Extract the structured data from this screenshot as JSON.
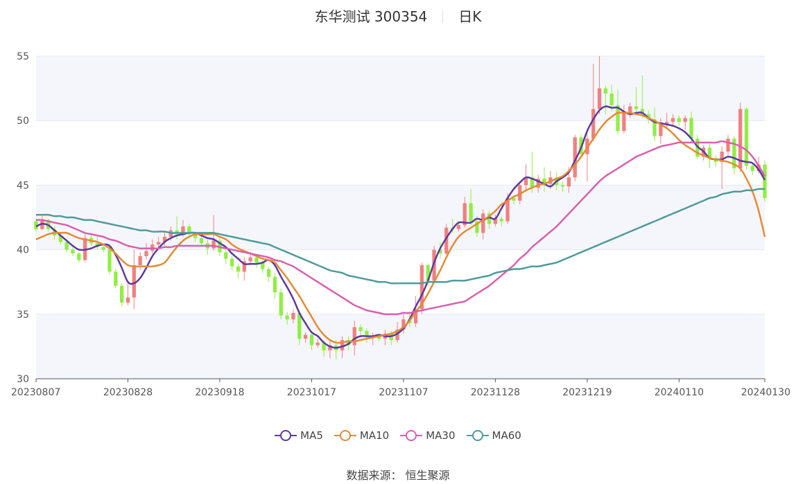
{
  "chart_title": {
    "name": "东华测试 300354",
    "period": "日K"
  },
  "source_text": "数据来源： 恒生聚源",
  "colors": {
    "up": "#f08080",
    "down": "#90ee44",
    "band": "#f5f6fb",
    "grid": "#e6e8f0",
    "axis": "#555555"
  },
  "chart_data": {
    "type": "candlestick",
    "ylim": [
      30,
      55
    ],
    "yticks": [
      30,
      35,
      40,
      45,
      50,
      55
    ],
    "x_tick_labels": [
      "20230807",
      "20230828",
      "20230918",
      "20231017",
      "20231107",
      "20231128",
      "20231219",
      "20240110",
      "20240130"
    ],
    "x_tick_indices": [
      0,
      15,
      30,
      45,
      60,
      75,
      90,
      105,
      119
    ],
    "candles": [
      [
        42.2,
        41.6,
        42.4,
        41.4
      ],
      [
        41.6,
        42.3,
        42.6,
        41.5
      ],
      [
        42.3,
        41.6,
        42.4,
        41.4
      ],
      [
        41.6,
        41.1,
        41.8,
        40.8
      ],
      [
        41.1,
        40.6,
        41.3,
        40.4
      ],
      [
        40.6,
        40.0,
        40.8,
        39.8
      ],
      [
        40.0,
        39.7,
        40.2,
        39.5
      ],
      [
        39.7,
        39.2,
        39.9,
        39.0
      ],
      [
        39.2,
        40.9,
        41.2,
        39.0
      ],
      [
        40.9,
        40.5,
        41.2,
        40.3
      ],
      [
        40.5,
        40.2,
        41.0,
        40.0
      ],
      [
        40.2,
        40.0,
        40.4,
        39.8
      ],
      [
        40.0,
        38.3,
        40.2,
        38.1
      ],
      [
        38.3,
        37.2,
        38.5,
        37.0
      ],
      [
        37.2,
        35.9,
        37.4,
        35.6
      ],
      [
        35.9,
        36.3,
        37.6,
        35.7
      ],
      [
        36.3,
        38.8,
        40.0,
        35.4
      ],
      [
        38.8,
        39.5,
        39.8,
        38.4
      ],
      [
        39.5,
        39.9,
        40.5,
        39.2
      ],
      [
        39.9,
        40.4,
        40.8,
        39.7
      ],
      [
        40.4,
        40.6,
        41.0,
        40.1
      ],
      [
        40.6,
        41.0,
        41.4,
        40.3
      ],
      [
        41.0,
        41.5,
        41.8,
        40.7
      ],
      [
        41.5,
        41.2,
        42.6,
        40.8
      ],
      [
        41.2,
        41.8,
        42.3,
        41.0
      ],
      [
        41.8,
        41.2,
        42.0,
        40.9
      ],
      [
        41.2,
        40.9,
        41.4,
        40.6
      ],
      [
        40.9,
        40.5,
        41.2,
        40.2
      ],
      [
        40.5,
        40.1,
        40.8,
        39.6
      ],
      [
        40.1,
        40.7,
        42.7,
        39.9
      ],
      [
        40.7,
        39.8,
        41.0,
        39.5
      ],
      [
        39.8,
        39.3,
        40.0,
        38.9
      ],
      [
        39.3,
        38.7,
        39.5,
        38.4
      ],
      [
        38.7,
        38.3,
        38.9,
        37.8
      ],
      [
        38.3,
        39.1,
        39.4,
        37.6
      ],
      [
        39.1,
        39.4,
        39.8,
        38.8
      ],
      [
        39.4,
        39.0,
        39.6,
        38.6
      ],
      [
        39.0,
        38.5,
        39.2,
        38.2
      ],
      [
        38.5,
        37.9,
        38.7,
        37.5
      ],
      [
        37.9,
        36.7,
        38.2,
        36.2
      ],
      [
        36.7,
        34.9,
        37.0,
        34.6
      ],
      [
        34.9,
        34.6,
        35.2,
        34.2
      ],
      [
        34.6,
        35.1,
        35.4,
        34.3
      ],
      [
        35.1,
        33.1,
        35.3,
        32.6
      ],
      [
        33.1,
        33.4,
        33.6,
        32.8
      ],
      [
        33.4,
        32.6,
        33.6,
        32.2
      ],
      [
        32.6,
        32.8,
        33.1,
        32.4
      ],
      [
        32.8,
        32.2,
        33.0,
        31.7
      ],
      [
        32.2,
        32.6,
        33.0,
        31.6
      ],
      [
        32.6,
        32.2,
        33.0,
        31.5
      ],
      [
        32.2,
        33.0,
        33.3,
        31.6
      ],
      [
        33.0,
        32.6,
        33.3,
        32.2
      ],
      [
        32.6,
        34.0,
        34.5,
        31.8
      ],
      [
        34.0,
        33.7,
        34.2,
        33.2
      ],
      [
        33.7,
        33.2,
        33.9,
        32.8
      ],
      [
        33.2,
        33.3,
        33.6,
        32.6
      ],
      [
        33.3,
        33.1,
        33.5,
        32.9
      ],
      [
        33.1,
        33.5,
        33.8,
        32.6
      ],
      [
        33.5,
        33.0,
        33.7,
        32.6
      ],
      [
        33.0,
        33.8,
        34.4,
        32.8
      ],
      [
        33.8,
        34.6,
        35.0,
        33.5
      ],
      [
        34.6,
        34.3,
        35.1,
        34.0
      ],
      [
        34.3,
        35.4,
        36.4,
        34.0
      ],
      [
        35.4,
        38.8,
        39.0,
        35.0
      ],
      [
        38.8,
        37.6,
        38.9,
        37.2
      ],
      [
        37.6,
        40.0,
        40.3,
        37.4
      ],
      [
        40.0,
        39.7,
        40.6,
        39.3
      ],
      [
        39.7,
        41.7,
        42.0,
        39.6
      ],
      [
        41.7,
        41.6,
        42.4,
        41.3
      ],
      [
        41.6,
        41.9,
        42.2,
        41.4
      ],
      [
        41.9,
        43.6,
        44.1,
        41.7
      ],
      [
        43.6,
        42.2,
        44.7,
        41.9
      ],
      [
        42.2,
        41.3,
        42.6,
        41.0
      ],
      [
        41.3,
        42.8,
        43.1,
        40.8
      ],
      [
        42.8,
        42.0,
        43.0,
        41.6
      ],
      [
        42.0,
        42.4,
        42.7,
        41.8
      ],
      [
        42.4,
        42.2,
        42.6,
        41.8
      ],
      [
        42.2,
        44.0,
        44.4,
        42.0
      ],
      [
        44.0,
        43.8,
        44.2,
        43.5
      ],
      [
        43.8,
        45.0,
        45.2,
        43.5
      ],
      [
        45.0,
        45.6,
        46.6,
        44.5
      ],
      [
        45.6,
        44.8,
        47.6,
        44.4
      ],
      [
        44.8,
        45.5,
        45.8,
        44.4
      ],
      [
        45.5,
        45.1,
        46.4,
        44.5
      ],
      [
        45.1,
        45.6,
        46.1,
        44.7
      ],
      [
        45.6,
        45.0,
        46.0,
        44.6
      ],
      [
        45.0,
        44.9,
        45.3,
        44.5
      ],
      [
        44.9,
        45.6,
        46.4,
        44.4
      ],
      [
        45.6,
        48.7,
        48.9,
        45.3
      ],
      [
        48.7,
        47.4,
        48.9,
        47.0
      ],
      [
        47.4,
        48.6,
        49.0,
        45.3
      ],
      [
        48.6,
        50.9,
        54.4,
        48.4
      ],
      [
        50.9,
        52.5,
        55.0,
        50.5
      ],
      [
        52.5,
        52.1,
        52.7,
        50.5
      ],
      [
        52.1,
        51.2,
        52.8,
        50.7
      ],
      [
        51.2,
        49.2,
        52.4,
        48.9
      ],
      [
        49.2,
        50.6,
        51.2,
        49.0
      ],
      [
        50.6,
        51.1,
        51.4,
        50.2
      ],
      [
        51.1,
        50.9,
        52.6,
        50.5
      ],
      [
        50.9,
        50.5,
        53.5,
        50.2
      ],
      [
        50.5,
        50.1,
        50.8,
        49.8
      ],
      [
        50.1,
        48.8,
        51.0,
        48.4
      ],
      [
        48.8,
        49.7,
        50.2,
        48.2
      ],
      [
        49.7,
        49.9,
        50.6,
        49.4
      ],
      [
        49.9,
        50.2,
        50.5,
        49.6
      ],
      [
        50.2,
        49.9,
        50.4,
        49.6
      ],
      [
        49.9,
        50.2,
        50.4,
        49.3
      ],
      [
        50.2,
        48.6,
        50.7,
        48.3
      ],
      [
        48.6,
        47.2,
        48.9,
        47.0
      ],
      [
        47.2,
        47.9,
        48.1,
        46.9
      ],
      [
        47.9,
        47.1,
        48.2,
        46.3
      ],
      [
        47.1,
        46.8,
        47.3,
        46.4
      ],
      [
        46.8,
        47.6,
        48.0,
        44.7
      ],
      [
        47.6,
        48.6,
        48.9,
        47.2
      ],
      [
        48.6,
        46.3,
        48.8,
        45.8
      ],
      [
        46.3,
        50.9,
        51.4,
        46.0
      ],
      [
        50.9,
        46.5,
        51.0,
        46.2
      ],
      [
        46.5,
        46.1,
        46.8,
        45.8
      ],
      [
        46.1,
        46.6,
        47.2,
        45.9
      ],
      [
        46.6,
        44.0,
        46.9,
        43.7
      ]
    ],
    "series": [
      {
        "name": "MA5",
        "color": "#5b3a9e",
        "values": [
          41.8,
          42.0,
          41.9,
          41.5,
          41.1,
          40.7,
          40.3,
          40.0,
          40.0,
          40.1,
          40.3,
          40.4,
          40.3,
          39.6,
          38.6,
          37.5,
          37.4,
          37.8,
          38.6,
          39.5,
          40.1,
          40.6,
          40.9,
          41.1,
          41.2,
          41.3,
          41.3,
          41.1,
          40.9,
          40.8,
          40.5,
          40.2,
          39.7,
          39.3,
          38.9,
          38.9,
          38.9,
          39.0,
          39.2,
          38.8,
          37.9,
          37.1,
          36.2,
          35.1,
          34.3,
          33.6,
          33.3,
          32.8,
          32.5,
          32.4,
          32.5,
          32.7,
          33.1,
          33.3,
          33.3,
          33.3,
          33.4,
          33.3,
          33.3,
          33.5,
          33.9,
          34.6,
          35.6,
          36.5,
          37.6,
          39.0,
          40.1,
          40.9,
          41.6,
          42.1,
          42.1,
          42.1,
          42.4,
          42.3,
          42.5,
          42.4,
          43.2,
          44.0,
          44.7,
          45.2,
          45.6,
          45.5,
          45.3,
          45.1,
          44.9,
          45.3,
          45.6,
          46.0,
          46.9,
          47.9,
          49.2,
          50.1,
          50.8,
          51.1,
          51.0,
          51.0,
          50.7,
          50.5,
          50.6,
          50.6,
          50.2,
          49.9,
          49.8,
          49.7,
          49.6,
          49.4,
          49.1,
          48.6,
          48.0,
          47.6,
          47.1,
          47.0,
          47.0,
          47.2,
          47.1,
          46.9,
          46.8,
          46.7,
          46.2,
          45.4
        ]
      },
      {
        "name": "MA10",
        "color": "#e58a35",
        "values": [
          40.8,
          41.0,
          41.2,
          41.3,
          41.3,
          41.3,
          41.1,
          40.9,
          40.8,
          40.7,
          40.6,
          40.4,
          40.1,
          39.7,
          39.2,
          38.8,
          38.7,
          38.7,
          38.7,
          38.7,
          38.8,
          39.0,
          39.6,
          40.2,
          40.7,
          41.0,
          41.2,
          41.2,
          41.2,
          41.2,
          41.0,
          40.8,
          40.4,
          40.1,
          39.9,
          39.7,
          39.5,
          39.3,
          39.2,
          39.0,
          38.4,
          37.8,
          37.1,
          36.4,
          35.6,
          34.8,
          34.0,
          33.4,
          33.0,
          32.8,
          32.8,
          32.9,
          32.9,
          33.0,
          33.1,
          33.2,
          33.3,
          33.4,
          33.5,
          33.7,
          34.0,
          34.5,
          35.2,
          35.8,
          36.6,
          37.5,
          38.4,
          39.4,
          40.3,
          41.0,
          41.4,
          41.7,
          42.0,
          42.3,
          42.6,
          43.0,
          43.5,
          43.8,
          44.1,
          44.3,
          44.6,
          44.8,
          45.0,
          45.1,
          45.3,
          45.5,
          45.7,
          46.1,
          46.6,
          47.2,
          47.9,
          48.6,
          49.3,
          49.9,
          50.3,
          50.6,
          50.6,
          50.6,
          50.5,
          50.4,
          50.2,
          50.0,
          49.7,
          49.4,
          49.0,
          48.5,
          48.1,
          47.8,
          47.5,
          47.3,
          47.1,
          47.0,
          46.9,
          46.8,
          46.6,
          46.3,
          45.5,
          44.5,
          43.0,
          41.0
        ]
      },
      {
        "name": "MA30",
        "color": "#d95fae",
        "values": [
          42.3,
          42.3,
          42.2,
          42.1,
          42.0,
          41.9,
          41.7,
          41.5,
          41.3,
          41.2,
          41.1,
          41.0,
          40.8,
          40.7,
          40.5,
          40.3,
          40.2,
          40.1,
          40.1,
          40.1,
          40.1,
          40.2,
          40.2,
          40.3,
          40.3,
          40.3,
          40.3,
          40.3,
          40.3,
          40.3,
          40.2,
          40.1,
          40.0,
          39.9,
          39.8,
          39.7,
          39.6,
          39.5,
          39.4,
          39.2,
          39.1,
          38.9,
          38.7,
          38.4,
          38.1,
          37.8,
          37.5,
          37.2,
          36.9,
          36.6,
          36.3,
          36.0,
          35.7,
          35.5,
          35.3,
          35.2,
          35.1,
          35.0,
          35.0,
          35.0,
          35.1,
          35.1,
          35.2,
          35.3,
          35.4,
          35.5,
          35.6,
          35.7,
          35.8,
          35.9,
          36.0,
          36.3,
          36.6,
          36.9,
          37.2,
          37.6,
          38.0,
          38.4,
          38.8,
          39.3,
          39.7,
          40.2,
          40.6,
          41.0,
          41.4,
          41.8,
          42.3,
          42.8,
          43.3,
          43.8,
          44.3,
          44.8,
          45.3,
          45.7,
          46.0,
          46.3,
          46.6,
          46.9,
          47.2,
          47.4,
          47.6,
          47.8,
          48.0,
          48.1,
          48.2,
          48.3,
          48.3,
          48.3,
          48.3,
          48.3,
          48.3,
          48.3,
          48.4,
          48.3,
          48.2,
          48.0,
          47.7,
          47.2,
          46.5,
          45.7
        ]
      },
      {
        "name": "MA60",
        "color": "#4f9a9a",
        "values": [
          42.7,
          42.7,
          42.7,
          42.6,
          42.6,
          42.5,
          42.5,
          42.4,
          42.3,
          42.3,
          42.2,
          42.1,
          42.0,
          41.9,
          41.8,
          41.7,
          41.6,
          41.5,
          41.5,
          41.4,
          41.4,
          41.4,
          41.3,
          41.3,
          41.3,
          41.3,
          41.3,
          41.3,
          41.3,
          41.3,
          41.2,
          41.1,
          41.0,
          40.9,
          40.8,
          40.7,
          40.6,
          40.5,
          40.4,
          40.2,
          40.0,
          39.8,
          39.6,
          39.4,
          39.2,
          39.0,
          38.8,
          38.6,
          38.4,
          38.3,
          38.2,
          38.0,
          37.9,
          37.8,
          37.7,
          37.6,
          37.5,
          37.5,
          37.4,
          37.4,
          37.4,
          37.4,
          37.4,
          37.4,
          37.5,
          37.5,
          37.5,
          37.5,
          37.6,
          37.6,
          37.6,
          37.7,
          37.8,
          37.9,
          38.0,
          38.2,
          38.3,
          38.4,
          38.5,
          38.5,
          38.6,
          38.7,
          38.7,
          38.8,
          38.9,
          39.0,
          39.2,
          39.4,
          39.6,
          39.8,
          40.0,
          40.2,
          40.4,
          40.6,
          40.8,
          41.0,
          41.2,
          41.4,
          41.6,
          41.8,
          42.0,
          42.2,
          42.4,
          42.6,
          42.8,
          43.0,
          43.2,
          43.4,
          43.6,
          43.8,
          44.0,
          44.1,
          44.3,
          44.4,
          44.5,
          44.5,
          44.6,
          44.6,
          44.7,
          44.7
        ]
      }
    ]
  }
}
